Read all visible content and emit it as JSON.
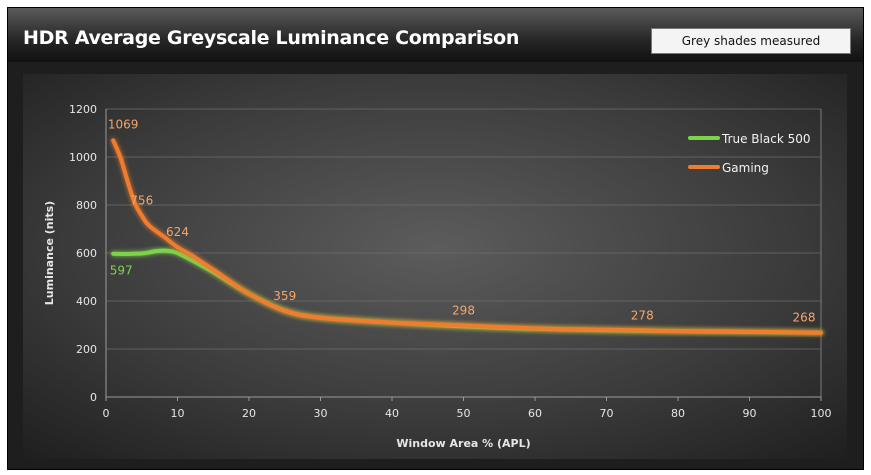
{
  "header": {
    "title": "HDR Average Greyscale Luminance Comparison",
    "badge": "Grey shades measured"
  },
  "chart_data": {
    "type": "line",
    "title": "HDR Average Greyscale Luminance Comparison",
    "xlabel": "Window Area % (APL)",
    "ylabel": "Luminance (nits)",
    "xlim": [
      0,
      100
    ],
    "ylim": [
      0,
      1200
    ],
    "xticks": [
      0,
      10,
      20,
      30,
      40,
      50,
      60,
      70,
      80,
      90,
      100
    ],
    "yticks": [
      0,
      200,
      400,
      600,
      800,
      1000,
      1200
    ],
    "grid": true,
    "legend_position": "top-right",
    "series": [
      {
        "name": "True Black 500",
        "color": "#7dd34a",
        "x": [
          1,
          2,
          3,
          4,
          5,
          6,
          7,
          8,
          9,
          10,
          12,
          15,
          20,
          25,
          30,
          40,
          50,
          60,
          70,
          75,
          80,
          90,
          100
        ],
        "y": [
          597,
          596,
          596,
          597,
          598,
          602,
          608,
          610,
          608,
          600,
          570,
          520,
          430,
          360,
          330,
          310,
          294,
          284,
          278,
          276,
          274,
          271,
          268
        ],
        "labels": [
          {
            "x": 1,
            "y": 597,
            "text": "597"
          }
        ]
      },
      {
        "name": "Gaming",
        "color": "#f07c2e",
        "x": [
          1,
          2,
          3,
          4,
          5,
          6,
          8,
          10,
          12,
          15,
          20,
          25,
          30,
          40,
          50,
          60,
          70,
          75,
          80,
          90,
          100
        ],
        "y": [
          1069,
          1000,
          900,
          810,
          756,
          715,
          670,
          624,
          590,
          530,
          430,
          359,
          330,
          310,
          298,
          286,
          280,
          278,
          275,
          272,
          268
        ],
        "labels": [
          {
            "x": 1,
            "y": 1069,
            "text": "1069"
          },
          {
            "x": 5,
            "y": 756,
            "text": "756"
          },
          {
            "x": 10,
            "y": 624,
            "text": "624"
          },
          {
            "x": 25,
            "y": 359,
            "text": "359"
          },
          {
            "x": 50,
            "y": 298,
            "text": "298"
          },
          {
            "x": 75,
            "y": 278,
            "text": "278"
          },
          {
            "x": 100,
            "y": 268,
            "text": "268"
          }
        ]
      }
    ]
  }
}
